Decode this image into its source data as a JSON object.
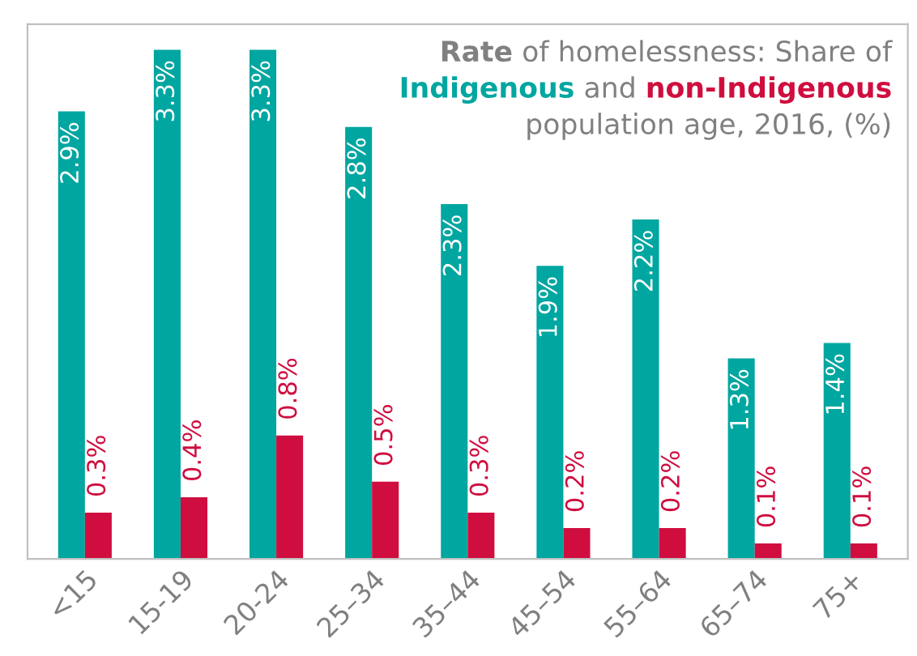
{
  "chart_data": {
    "type": "bar",
    "title": "Rate of homelessness: Share of",
    "subtitle": "population age, 2016, (%)",
    "annotations": [
      "and"
    ],
    "categories": [
      "<15",
      "15-19",
      "20-24",
      "25–34",
      "35–44",
      "45–54",
      "55–64",
      "65–74",
      "75+"
    ],
    "series": [
      {
        "name": "Indigenous",
        "color": "#00a6a0",
        "values": [
          2.9,
          3.3,
          3.3,
          2.8,
          2.3,
          1.9,
          2.2,
          1.3,
          1.4
        ],
        "value_labels": [
          "2.9%",
          "3.3%",
          "3.3%",
          "2.8%",
          "2.3%",
          "1.9%",
          "2.2%",
          "1.3%",
          "1.4%"
        ]
      },
      {
        "name": "non-Indigenous",
        "color": "#cf0e3f",
        "values": [
          0.3,
          0.4,
          0.8,
          0.5,
          0.3,
          0.2,
          0.2,
          0.1,
          0.1
        ],
        "value_labels": [
          "0.3%",
          "0.4%",
          "0.8%",
          "0.5%",
          "0.3%",
          "0.2%",
          "0.2%",
          "0.1%",
          "0.1%"
        ]
      }
    ],
    "grid": false,
    "legend": false,
    "tick_labels": "x"
  }
}
